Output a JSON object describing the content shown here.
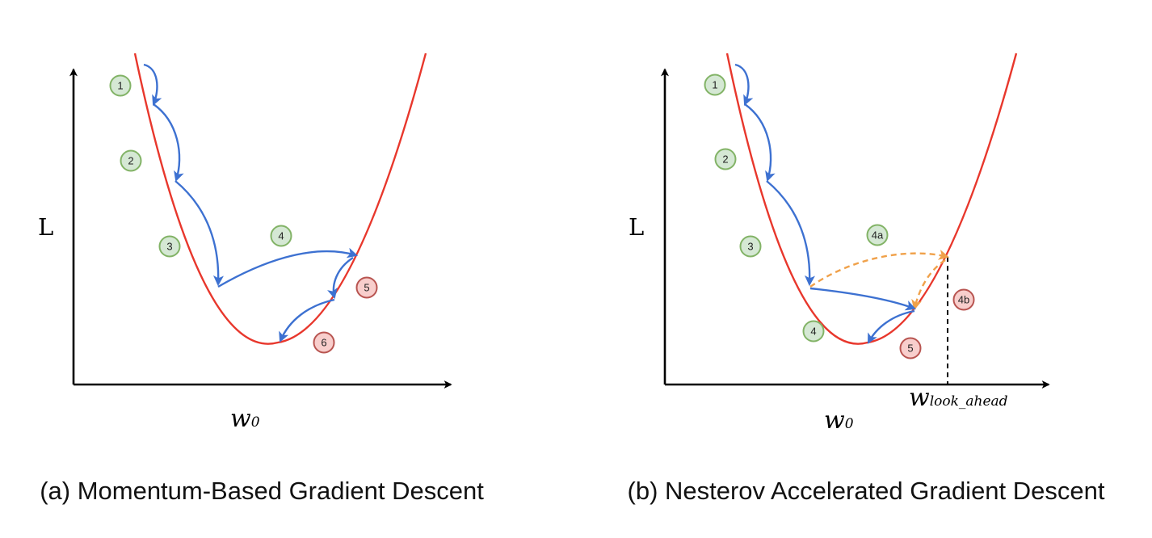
{
  "panels": [
    {
      "id": "a",
      "y_axis_label": "L",
      "x_axis_label": {
        "main": "w",
        "sub": "0"
      },
      "caption": "(a) Momentum-Based Gradient Descent",
      "badges": [
        {
          "label": "1",
          "kind": "green"
        },
        {
          "label": "2",
          "kind": "green"
        },
        {
          "label": "3",
          "kind": "green"
        },
        {
          "label": "4",
          "kind": "green"
        },
        {
          "label": "5",
          "kind": "red"
        },
        {
          "label": "6",
          "kind": "red"
        }
      ]
    },
    {
      "id": "b",
      "y_axis_label": "L",
      "x_axis_label": {
        "main": "w",
        "sub": "0"
      },
      "look_ahead_label": {
        "main": "w",
        "sub": "look_ahead"
      },
      "caption": "(b) Nesterov Accelerated Gradient Descent",
      "badges": [
        {
          "label": "1",
          "kind": "green"
        },
        {
          "label": "2",
          "kind": "green"
        },
        {
          "label": "3",
          "kind": "green"
        },
        {
          "label": "4a",
          "kind": "green"
        },
        {
          "label": "4b",
          "kind": "red"
        },
        {
          "label": "4",
          "kind": "green"
        },
        {
          "label": "5",
          "kind": "red"
        }
      ]
    }
  ],
  "colors": {
    "loss_curve": "#e8372c",
    "momentum_step": "#3d71d1",
    "look_ahead_step": "#f0a14a",
    "green_badge_fill": "#d5e8d4",
    "green_badge_stroke": "#82b366",
    "red_badge_fill": "#f8cecc",
    "red_badge_stroke": "#b85450"
  }
}
